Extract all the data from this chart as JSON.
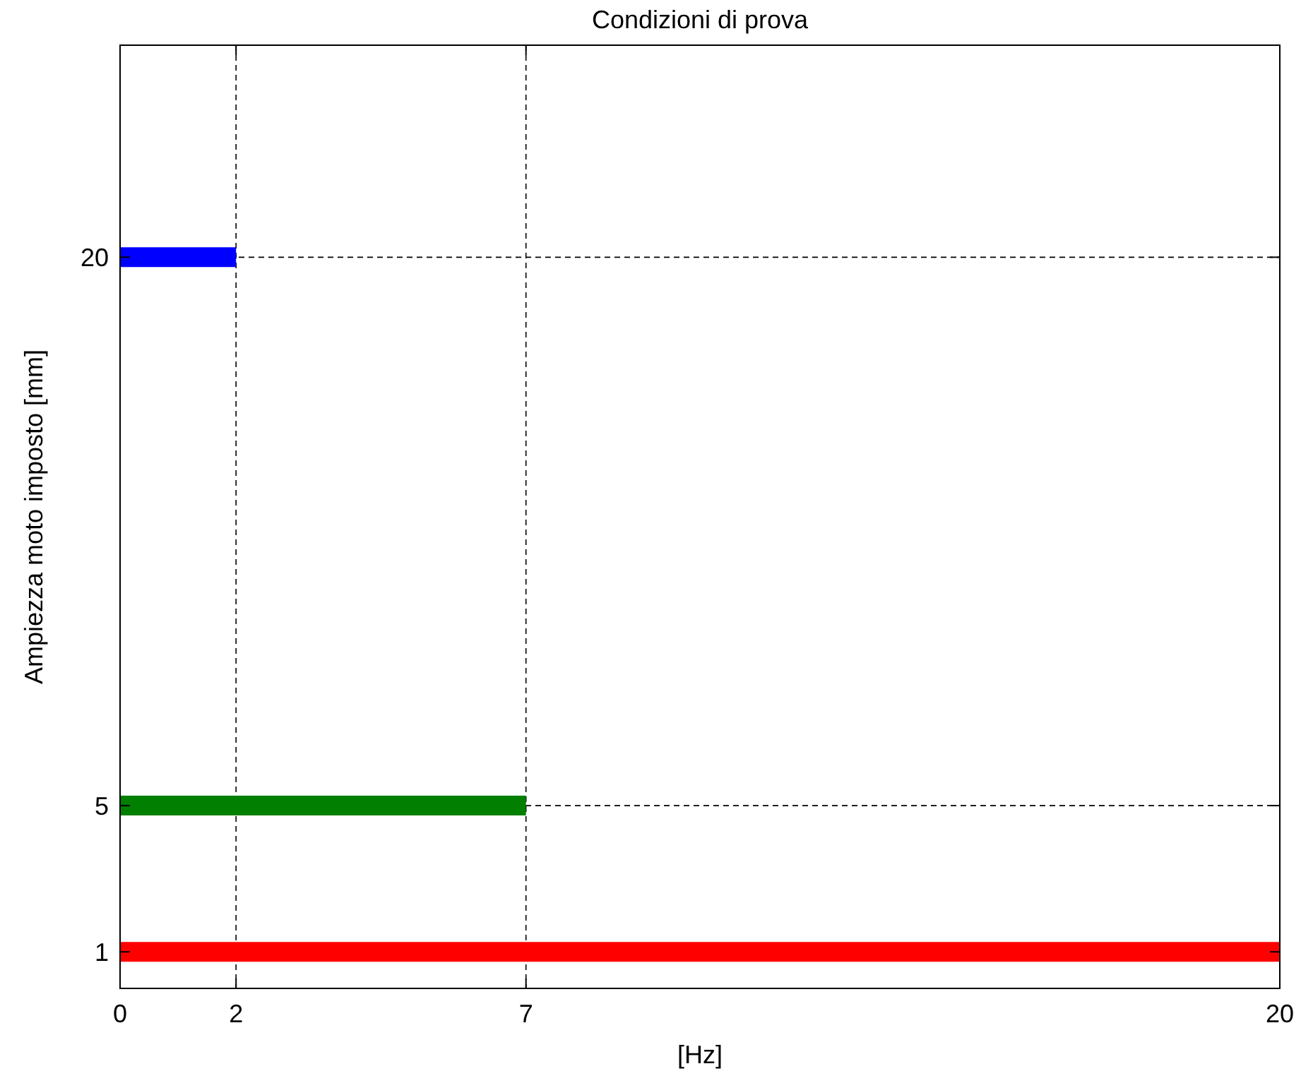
{
  "chart_data": {
    "type": "line",
    "title": "Condizioni di prova",
    "xlabel": "[Hz]",
    "ylabel": "Ampiezza moto imposto [mm]",
    "series": [
      {
        "color": "#ff0000",
        "x": [
          0,
          20
        ],
        "values": [
          1,
          1
        ]
      },
      {
        "color": "#007f00",
        "x": [
          0,
          7
        ],
        "values": [
          5,
          5
        ]
      },
      {
        "color": "#0000ff",
        "x": [
          0,
          2
        ],
        "values": [
          20,
          20
        ]
      }
    ],
    "xlim": [
      0,
      20
    ],
    "xticks": [
      0,
      2,
      7,
      20
    ],
    "ylim": [
      0,
      25.8
    ],
    "yticks": [
      1,
      5,
      20
    ],
    "grid": true,
    "line_style": "solid"
  }
}
